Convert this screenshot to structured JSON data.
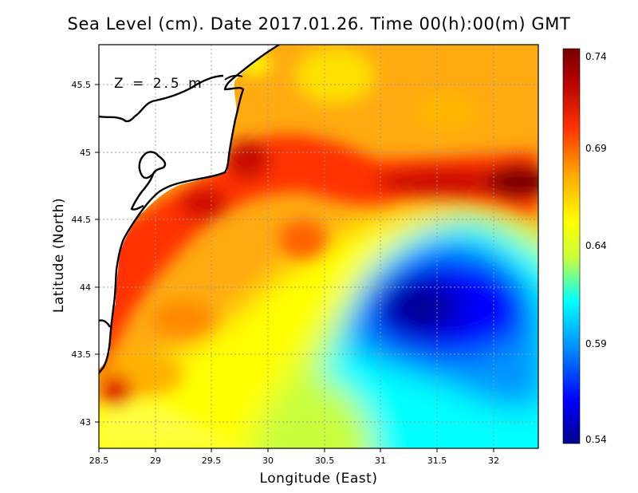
{
  "map": {
    "title": "Sea Level (cm). Date 2017.01.26. Time 00(h):00(m) GMT",
    "depth_label": "Z = 2.5 m",
    "x_axis_label": "Longitude (East)",
    "y_axis_label": "Latitude (North)",
    "x_ticks": [
      "28.5",
      "29",
      "29.5",
      "30",
      "30.5",
      "31",
      "31.5",
      "32"
    ],
    "y_ticks": [
      "43",
      "43.5",
      "44",
      "44.5",
      "45",
      "45.5"
    ],
    "x_range": [
      28.5,
      32.4
    ],
    "y_range": [
      42.8,
      45.8
    ],
    "grid": true
  },
  "colorbar": {
    "ticks": [
      "0.74",
      "0.69",
      "0.64",
      "0.59",
      "0.54"
    ],
    "min": 0.54,
    "max": 0.74,
    "colors": [
      "#00008c",
      "#0000ff",
      "#0096ff",
      "#00ffff",
      "#c8ff3c",
      "#ffff00",
      "#ffaa00",
      "#ff3200",
      "#b40000",
      "#780000"
    ]
  }
}
